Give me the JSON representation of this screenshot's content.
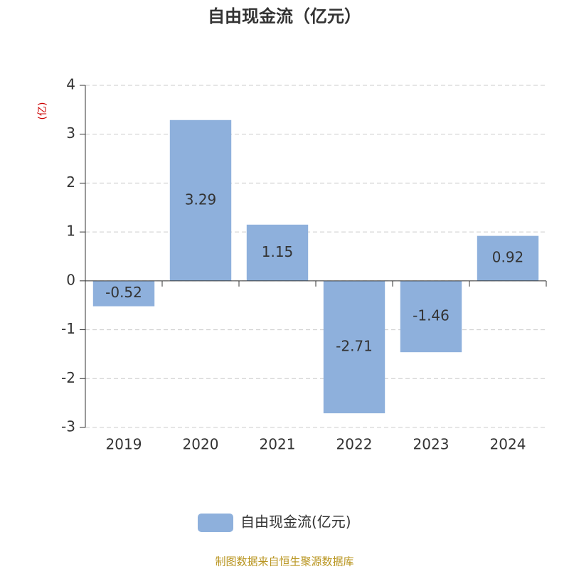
{
  "chart_data": {
    "type": "bar",
    "title": "自由现金流（亿元）",
    "y_label": "(亿)",
    "categories": [
      "2019",
      "2020",
      "2021",
      "2022",
      "2023",
      "2024"
    ],
    "series": [
      {
        "name": "自由现金流(亿元)",
        "color": "#8eb0dc",
        "values": [
          -0.52,
          3.29,
          1.15,
          -2.71,
          -1.46,
          0.92
        ]
      }
    ],
    "ylim": [
      -3,
      4
    ],
    "yticks": [
      -3,
      -2,
      -1,
      0,
      1,
      2,
      3,
      4
    ],
    "grid": true,
    "legend": "bottom",
    "source": "制图数据来自恒生聚源数据库"
  }
}
